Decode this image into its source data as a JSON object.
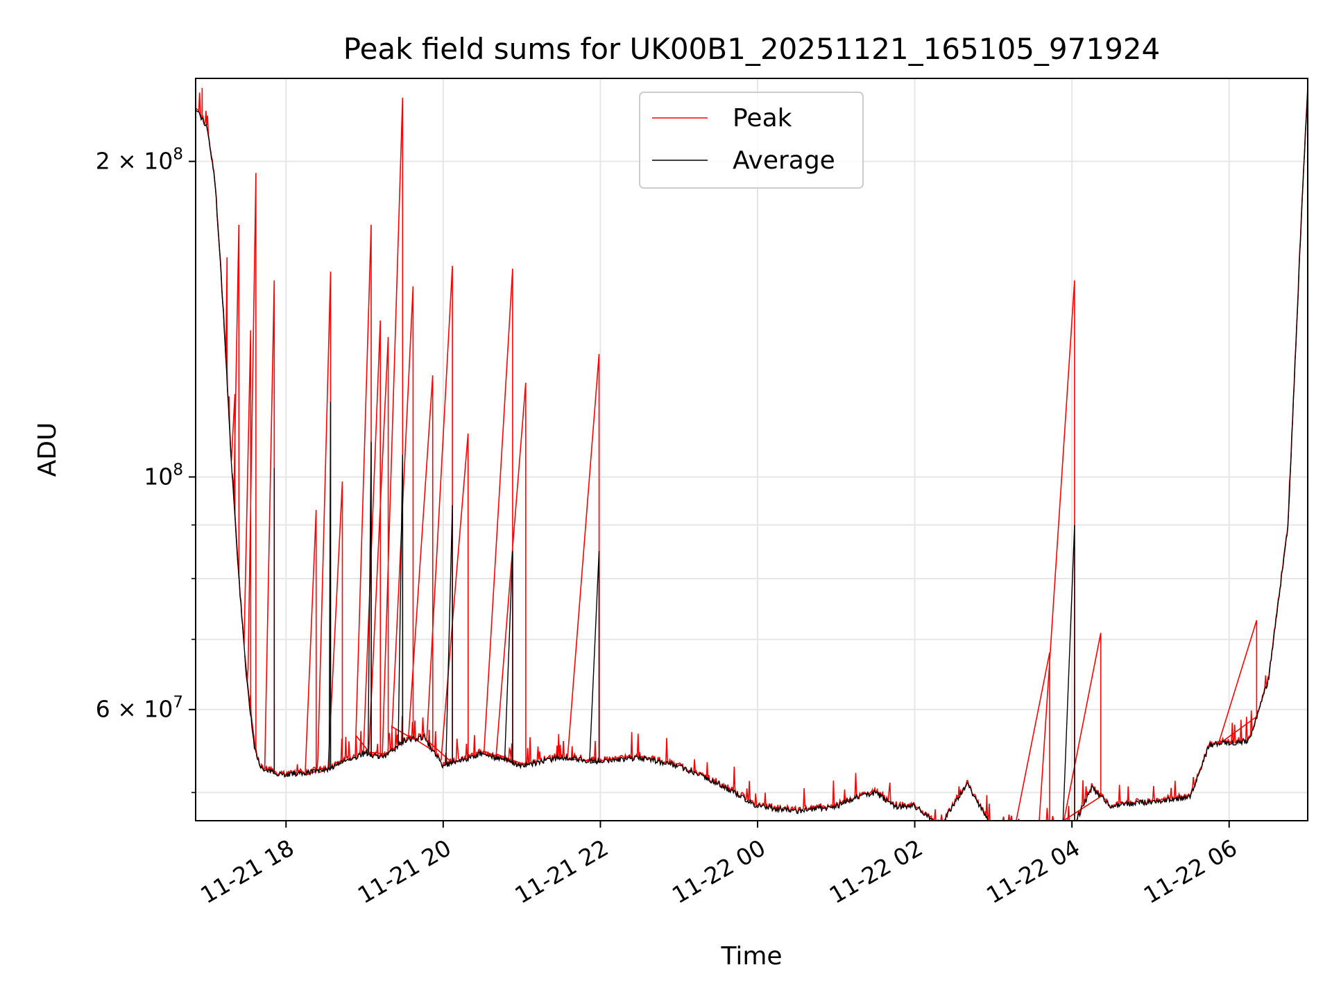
{
  "chart_data": {
    "type": "line",
    "title": "Peak field sums for UK00B1_20251121_165105_971924",
    "xlabel": "Time",
    "ylabel": "ADU",
    "yscale": "log",
    "grid": true,
    "legend_position": "upper-center",
    "x_tick_labels": [
      "11-21 18",
      "11-21 20",
      "11-21 22",
      "11-22 00",
      "11-22 02",
      "11-22 04",
      "11-22 06"
    ],
    "y_tick_labels": [
      {
        "value": 200000000,
        "mantissa": "2",
        "exponent": "8"
      },
      {
        "value": 100000000,
        "mantissa": "",
        "exponent": "8"
      },
      {
        "value": 60000000,
        "mantissa": "6",
        "exponent": "7"
      }
    ],
    "x_range_hours": [
      16.85,
      7.0
    ],
    "ylim": [
      47000000,
      240000000
    ],
    "series": [
      {
        "name": "Peak",
        "color": "#ff0000",
        "baseline_points": [
          [
            "11-21 16:51",
            225000000
          ],
          [
            "11-21 17:00",
            215000000
          ],
          [
            "11-21 17:06",
            190000000
          ],
          [
            "11-21 17:12",
            145000000
          ],
          [
            "11-21 17:18",
            105000000
          ],
          [
            "11-21 17:24",
            80000000
          ],
          [
            "11-21 17:30",
            64000000
          ],
          [
            "11-21 17:36",
            55000000
          ],
          [
            "11-21 17:42",
            52500000
          ],
          [
            "11-21 18:00",
            52000000
          ],
          [
            "11-21 18:30",
            52500000
          ],
          [
            "11-21 18:45",
            53500000
          ],
          [
            "11-21 19:00",
            54500000
          ],
          [
            "11-21 19:15",
            54000000
          ],
          [
            "11-21 19:30",
            56000000
          ],
          [
            "11-21 19:45",
            56500000
          ],
          [
            "11-21 20:00",
            53000000
          ],
          [
            "11-21 20:30",
            54500000
          ],
          [
            "11-21 21:00",
            53000000
          ],
          [
            "11-21 21:30",
            54000000
          ],
          [
            "11-21 22:00",
            53500000
          ],
          [
            "11-21 22:30",
            54000000
          ],
          [
            "11-21 23:00",
            53000000
          ],
          [
            "11-21 23:30",
            51000000
          ],
          [
            "11-22 00:00",
            48500000
          ],
          [
            "11-22 00:30",
            48000000
          ],
          [
            "11-22 01:00",
            48500000
          ],
          [
            "11-22 01:15",
            49500000
          ],
          [
            "11-22 01:30",
            50000000
          ],
          [
            "11-22 01:45",
            48500000
          ],
          [
            "11-22 02:00",
            48500000
          ],
          [
            "11-22 02:20",
            46500000
          ],
          [
            "11-22 02:40",
            51000000
          ],
          [
            "11-22 03:00",
            46000000
          ],
          [
            "11-22 03:30",
            45500000
          ],
          [
            "11-22 04:00",
            46000000
          ],
          [
            "11-22 04:15",
            50500000
          ],
          [
            "11-22 04:30",
            48500000
          ],
          [
            "11-22 05:00",
            49000000
          ],
          [
            "11-22 05:30",
            49500000
          ],
          [
            "11-22 05:45",
            55500000
          ],
          [
            "11-22 06:15",
            56000000
          ],
          [
            "11-22 06:30",
            64000000
          ],
          [
            "11-22 06:45",
            90000000
          ],
          [
            "11-22 06:55",
            175000000
          ],
          [
            "11-22 07:00",
            235000000
          ]
        ],
        "spikes": [
          [
            "11-21 16:56",
            235000000
          ],
          [
            "11-21 17:15",
            162000000
          ],
          [
            "11-21 17:21",
            120000000
          ],
          [
            "11-21 17:24",
            174000000
          ],
          [
            "11-21 17:33",
            138000000
          ],
          [
            "11-21 17:37",
            195000000
          ],
          [
            "11-21 17:51",
            154000000
          ],
          [
            "11-21 18:23",
            93000000
          ],
          [
            "11-21 18:34",
            157000000
          ],
          [
            "11-21 18:43",
            99000000
          ],
          [
            "11-21 19:05",
            174000000
          ],
          [
            "11-21 19:12",
            141000000
          ],
          [
            "11-21 19:18",
            136000000
          ],
          [
            "11-21 19:29",
            230000000
          ],
          [
            "11-21 19:37",
            152000000
          ],
          [
            "11-21 19:52",
            125000000
          ],
          [
            "11-21 20:07",
            159000000
          ],
          [
            "11-21 20:19",
            110000000
          ],
          [
            "11-21 20:53",
            158000000
          ],
          [
            "11-21 21:03",
            123000000
          ],
          [
            "11-21 21:59",
            131000000
          ],
          [
            "11-22 03:43",
            68000000
          ],
          [
            "11-22 04:02",
            154000000
          ],
          [
            "11-22 04:22",
            71000000
          ],
          [
            "11-22 06:21",
            73000000
          ]
        ]
      },
      {
        "name": "Average",
        "color": "#000000",
        "spikes": [
          [
            "11-21 17:51",
            102000000
          ],
          [
            "11-21 18:34",
            118000000
          ],
          [
            "11-21 19:05",
            108000000
          ],
          [
            "11-21 19:29",
            105000000
          ],
          [
            "11-21 20:07",
            94000000
          ],
          [
            "11-21 20:53",
            85000000
          ],
          [
            "11-21 21:59",
            85000000
          ],
          [
            "11-22 04:02",
            90000000
          ]
        ]
      }
    ]
  }
}
